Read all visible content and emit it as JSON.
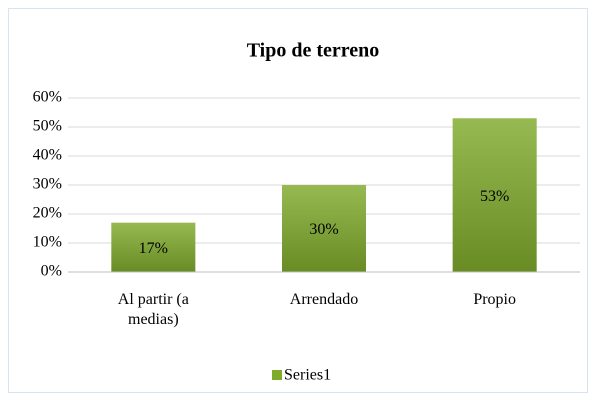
{
  "chart_data": {
    "type": "bar",
    "title": "Tipo de terreno",
    "categories": [
      "Al partir (a medias)",
      "Arrendado",
      "Propio"
    ],
    "series": [
      {
        "name": "Series1",
        "color": "#7fab2b",
        "values": [
          17,
          30,
          53
        ],
        "value_labels": [
          "17%",
          "30%",
          "53%"
        ]
      }
    ],
    "ylim": [
      0,
      60
    ],
    "yticks": [
      {
        "value": 0,
        "label": "0%"
      },
      {
        "value": 10,
        "label": "10%"
      },
      {
        "value": 20,
        "label": "20%"
      },
      {
        "value": 30,
        "label": "30%"
      },
      {
        "value": 40,
        "label": "40%"
      },
      {
        "value": 50,
        "label": "50%"
      },
      {
        "value": 60,
        "label": "60%"
      }
    ],
    "grid": true,
    "legend": "bottom"
  }
}
